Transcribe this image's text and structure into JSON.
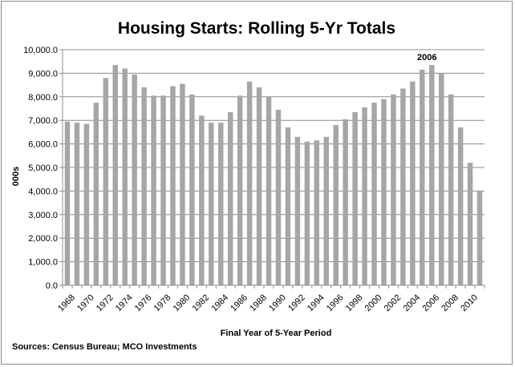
{
  "chart_data": {
    "type": "bar",
    "title": "Housing Starts: Rolling 5-Yr Totals",
    "xlabel": "Final Year of 5-Year Period",
    "ylabel": "000s",
    "ylim": [
      0,
      10000
    ],
    "yticks": [
      "0.0",
      "1,000.0",
      "2,000.0",
      "3,000.0",
      "4,000.0",
      "5,000.0",
      "6,000.0",
      "7,000.0",
      "8,000.0",
      "9,000.0",
      "10,000.0"
    ],
    "categories": [
      "1968",
      "1969",
      "1970",
      "1971",
      "1972",
      "1973",
      "1974",
      "1975",
      "1976",
      "1977",
      "1978",
      "1979",
      "1980",
      "1981",
      "1982",
      "1983",
      "1984",
      "1985",
      "1986",
      "1987",
      "1988",
      "1989",
      "1990",
      "1991",
      "1992",
      "1993",
      "1994",
      "1995",
      "1996",
      "1997",
      "1998",
      "1999",
      "2000",
      "2001",
      "2002",
      "2003",
      "2004",
      "2005",
      "2006",
      "2007",
      "2008",
      "2009",
      "2010",
      "2011"
    ],
    "xtick_labels": [
      "1968",
      "",
      "1970",
      "",
      "1972",
      "",
      "1974",
      "",
      "1976",
      "",
      "1978",
      "",
      "1980",
      "",
      "1982",
      "",
      "1984",
      "",
      "1986",
      "",
      "1988",
      "",
      "1990",
      "",
      "1992",
      "",
      "1994",
      "",
      "1996",
      "",
      "1998",
      "",
      "2000",
      "",
      "2002",
      "",
      "2004",
      "",
      "2006",
      "",
      "2008",
      "",
      "2010",
      ""
    ],
    "values": [
      6950,
      6900,
      6850,
      7750,
      8800,
      9350,
      9200,
      8950,
      8400,
      8050,
      8050,
      8450,
      8550,
      8100,
      7200,
      6900,
      6900,
      7350,
      8050,
      8650,
      8400,
      8000,
      7450,
      6700,
      6300,
      6100,
      6150,
      6300,
      6800,
      7050,
      7350,
      7550,
      7750,
      7900,
      8100,
      8350,
      8650,
      9150,
      9350,
      9000,
      8100,
      6700,
      5200,
      4000
    ],
    "bar_color": "#a6a6a6",
    "grid": true,
    "annotation": {
      "label": "2006",
      "category": "2006"
    },
    "source": "Sources: Census Bureau; MCO Investments"
  }
}
